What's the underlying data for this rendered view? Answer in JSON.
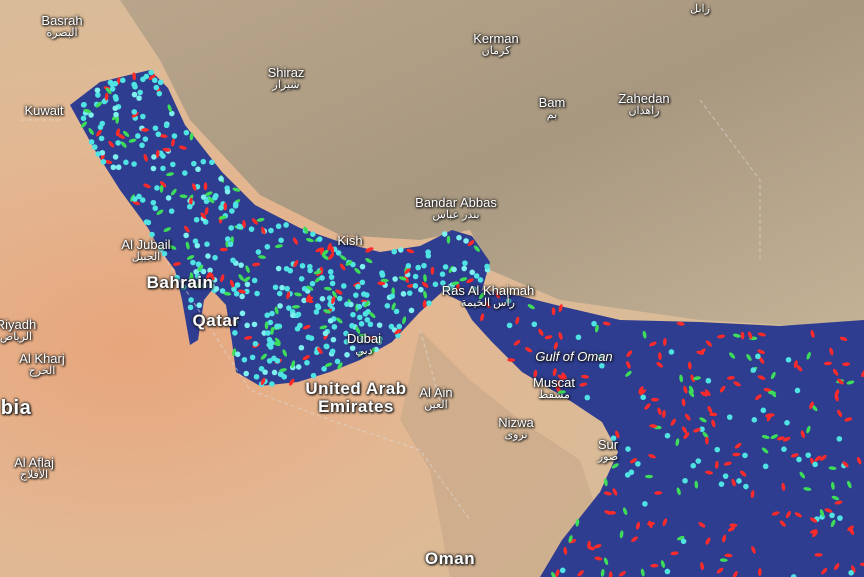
{
  "places": [
    {
      "name": "Basrah",
      "native": "البصرة"
    },
    {
      "name": "Kuwait",
      "native": null
    },
    {
      "name": "Shiraz",
      "native": "شيراز"
    },
    {
      "name": "Kerman",
      "native": "كرمان"
    },
    {
      "name": "Bam",
      "native": "بم"
    },
    {
      "name": "Zahedan",
      "native": "زاهدان"
    },
    {
      "name": null,
      "native": "زابل"
    },
    {
      "name": "Bandar Abbas",
      "native": "بندر عباس"
    },
    {
      "name": "Kish",
      "native": null
    },
    {
      "name": "Al Jubail",
      "native": "الجبيل"
    },
    {
      "name": "Bahrain",
      "native": null
    },
    {
      "name": "Qatar",
      "native": null
    },
    {
      "name": "Dubai",
      "native": "دبي"
    },
    {
      "name": "United Arab Emirates",
      "native": null
    },
    {
      "name": "Al Ain",
      "native": "العين"
    },
    {
      "name": "Ras Al Khaimah",
      "native": "رأس الخيمة"
    },
    {
      "name": "Gulf of Oman",
      "native": null
    },
    {
      "name": "Muscat",
      "native": "مسقط"
    },
    {
      "name": "Nizwa",
      "native": "نزوى"
    },
    {
      "name": "Sur",
      "native": "صور"
    },
    {
      "name": "Riyadh",
      "native": "الرياض"
    },
    {
      "name": "Al Kharj",
      "native": "الخرج"
    },
    {
      "name": "Al Aflaj",
      "native": "الأفلاج"
    },
    {
      "name": "Oman",
      "native": null
    },
    {
      "name": "bia",
      "native": null
    }
  ]
}
